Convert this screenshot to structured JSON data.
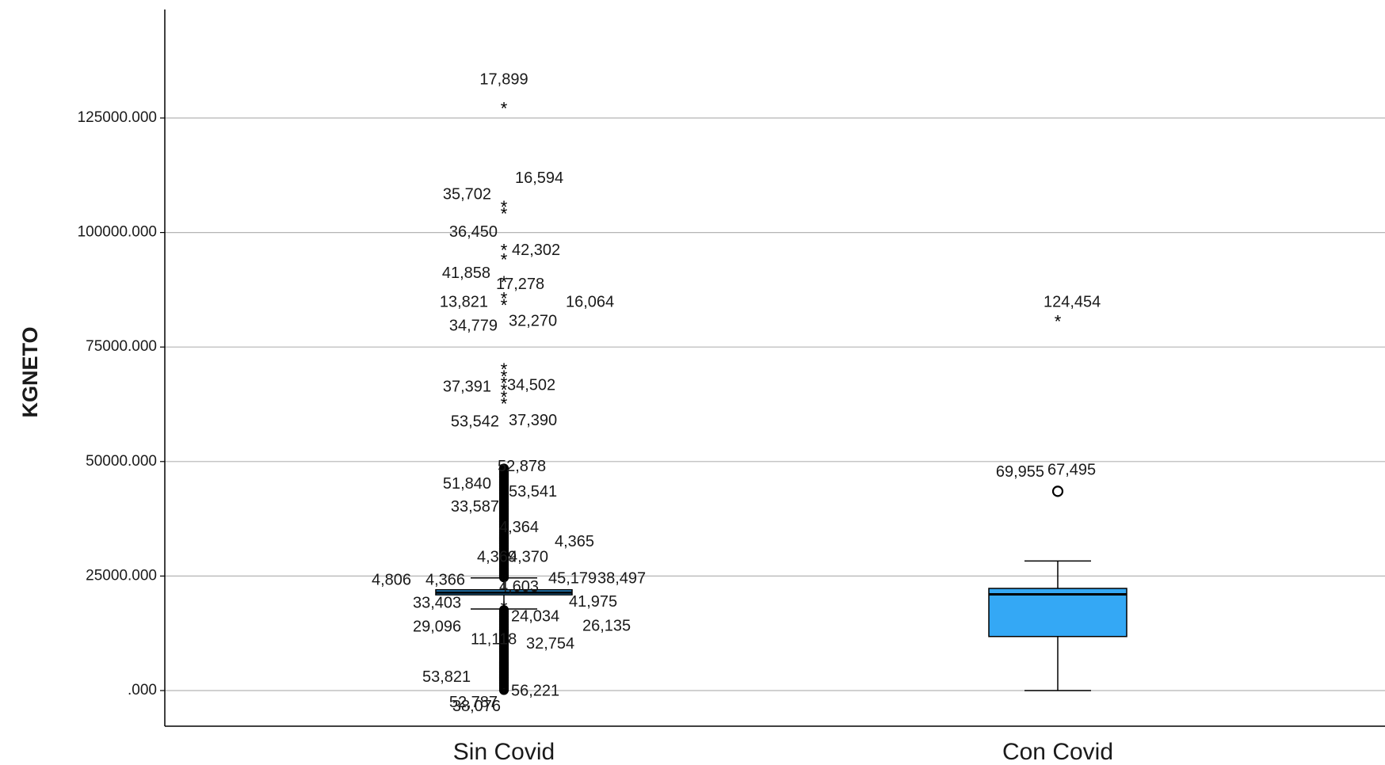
{
  "chart_data": {
    "type": "boxplot",
    "xlabel": "",
    "ylabel": "KGNETO",
    "ylim": [
      -8000,
      150000
    ],
    "yticks": [
      {
        "value": 0,
        "label": ".000"
      },
      {
        "value": 25000,
        "label": "25000.000"
      },
      {
        "value": 50000,
        "label": "50000.000"
      },
      {
        "value": 75000,
        "label": "75000.000"
      },
      {
        "value": 100000,
        "label": "100000.000"
      },
      {
        "value": 125000,
        "label": "125000.000"
      }
    ],
    "grid": true,
    "colors": {
      "box_fill": "#34a8f5",
      "grid": "#b4b4b4",
      "axis": "#000000",
      "median": "#000000"
    },
    "categories": [
      "Sin Covid",
      "Con Covid"
    ],
    "groups": [
      {
        "category": "Sin Covid",
        "whisker_low": 17800,
        "q1": 20900,
        "median": 21400,
        "q3": 22000,
        "whisker_high": 24600,
        "outliers_circle_range": [
          [
            100,
            17800
          ],
          [
            24700,
            48500
          ]
        ],
        "extremes": [
          127000,
          105500,
          104000,
          96000,
          94000,
          89000,
          85500,
          84000,
          70000,
          68500,
          67000,
          65500,
          64000,
          62500,
          43500,
          40000,
          36500,
          34000,
          32500,
          30000,
          28000,
          27000,
          18000,
          16500,
          15000,
          13000,
          11500,
          9500,
          8000,
          6000,
          4500,
          2500,
          800
        ],
        "labels": [
          {
            "text": "17,899",
            "y": 131500
          },
          {
            "text": "16,594",
            "y": 110000
          },
          {
            "text": "35,702",
            "y": 107300
          },
          {
            "text": "36,450",
            "y": 100000
          },
          {
            "text": "42,302",
            "y": 96000
          },
          {
            "text": "41,858",
            "y": 91000
          },
          {
            "text": "17,278",
            "y": 88600
          },
          {
            "text": "13,821",
            "y": 84700
          },
          {
            "text": "16,064",
            "y": 84700
          },
          {
            "text": "32,270",
            "y": 80500
          },
          {
            "text": "34,779",
            "y": 79500
          },
          {
            "text": "37,391",
            "y": 66200
          },
          {
            "text": "34,502",
            "y": 66500
          },
          {
            "text": "53,542",
            "y": 58600
          },
          {
            "text": "37,390",
            "y": 58800
          },
          {
            "text": "52,878",
            "y": 48800
          },
          {
            "text": "51,840",
            "y": 45000
          },
          {
            "text": "53,541",
            "y": 43300
          },
          {
            "text": "33,587",
            "y": 40000
          },
          {
            "text": "4,364",
            "y": 35500
          },
          {
            "text": "4,365",
            "y": 32400
          },
          {
            "text": "4,369",
            "y": 29000
          },
          {
            "text": "4,370",
            "y": 29000
          },
          {
            "text": "4,806",
            "y": 24000
          },
          {
            "text": "4,366",
            "y": 24000
          },
          {
            "text": "45,179",
            "y": 24300
          },
          {
            "text": "38,497",
            "y": 24300
          },
          {
            "text": "4,603",
            "y": 22500
          },
          {
            "text": "33,403",
            "y": 19000
          },
          {
            "text": "41,975",
            "y": 19200
          },
          {
            "text": "24,034",
            "y": 16000
          },
          {
            "text": "29,096",
            "y": 13800
          },
          {
            "text": "26,135",
            "y": 14000
          },
          {
            "text": "11,118",
            "y": 11000
          },
          {
            "text": "32,754",
            "y": 10100
          },
          {
            "text": "53,821",
            "y": 2800
          },
          {
            "text": "56,221",
            "y": -200
          },
          {
            "text": "52,787",
            "y": -2700
          },
          {
            "text": "38,076",
            "y": -3600
          }
        ]
      },
      {
        "category": "Con Covid",
        "whisker_low": 0,
        "q1": 11800,
        "median": 21000,
        "q3": 22300,
        "whisker_high": 28300,
        "outliers": [
          43500
        ],
        "extremes": [
          80500
        ],
        "labels": [
          {
            "text": "124,454",
            "y": 84700
          },
          {
            "text": "69,955",
            "y": 47600
          },
          {
            "text": "67,495",
            "y": 48000
          }
        ]
      }
    ]
  }
}
